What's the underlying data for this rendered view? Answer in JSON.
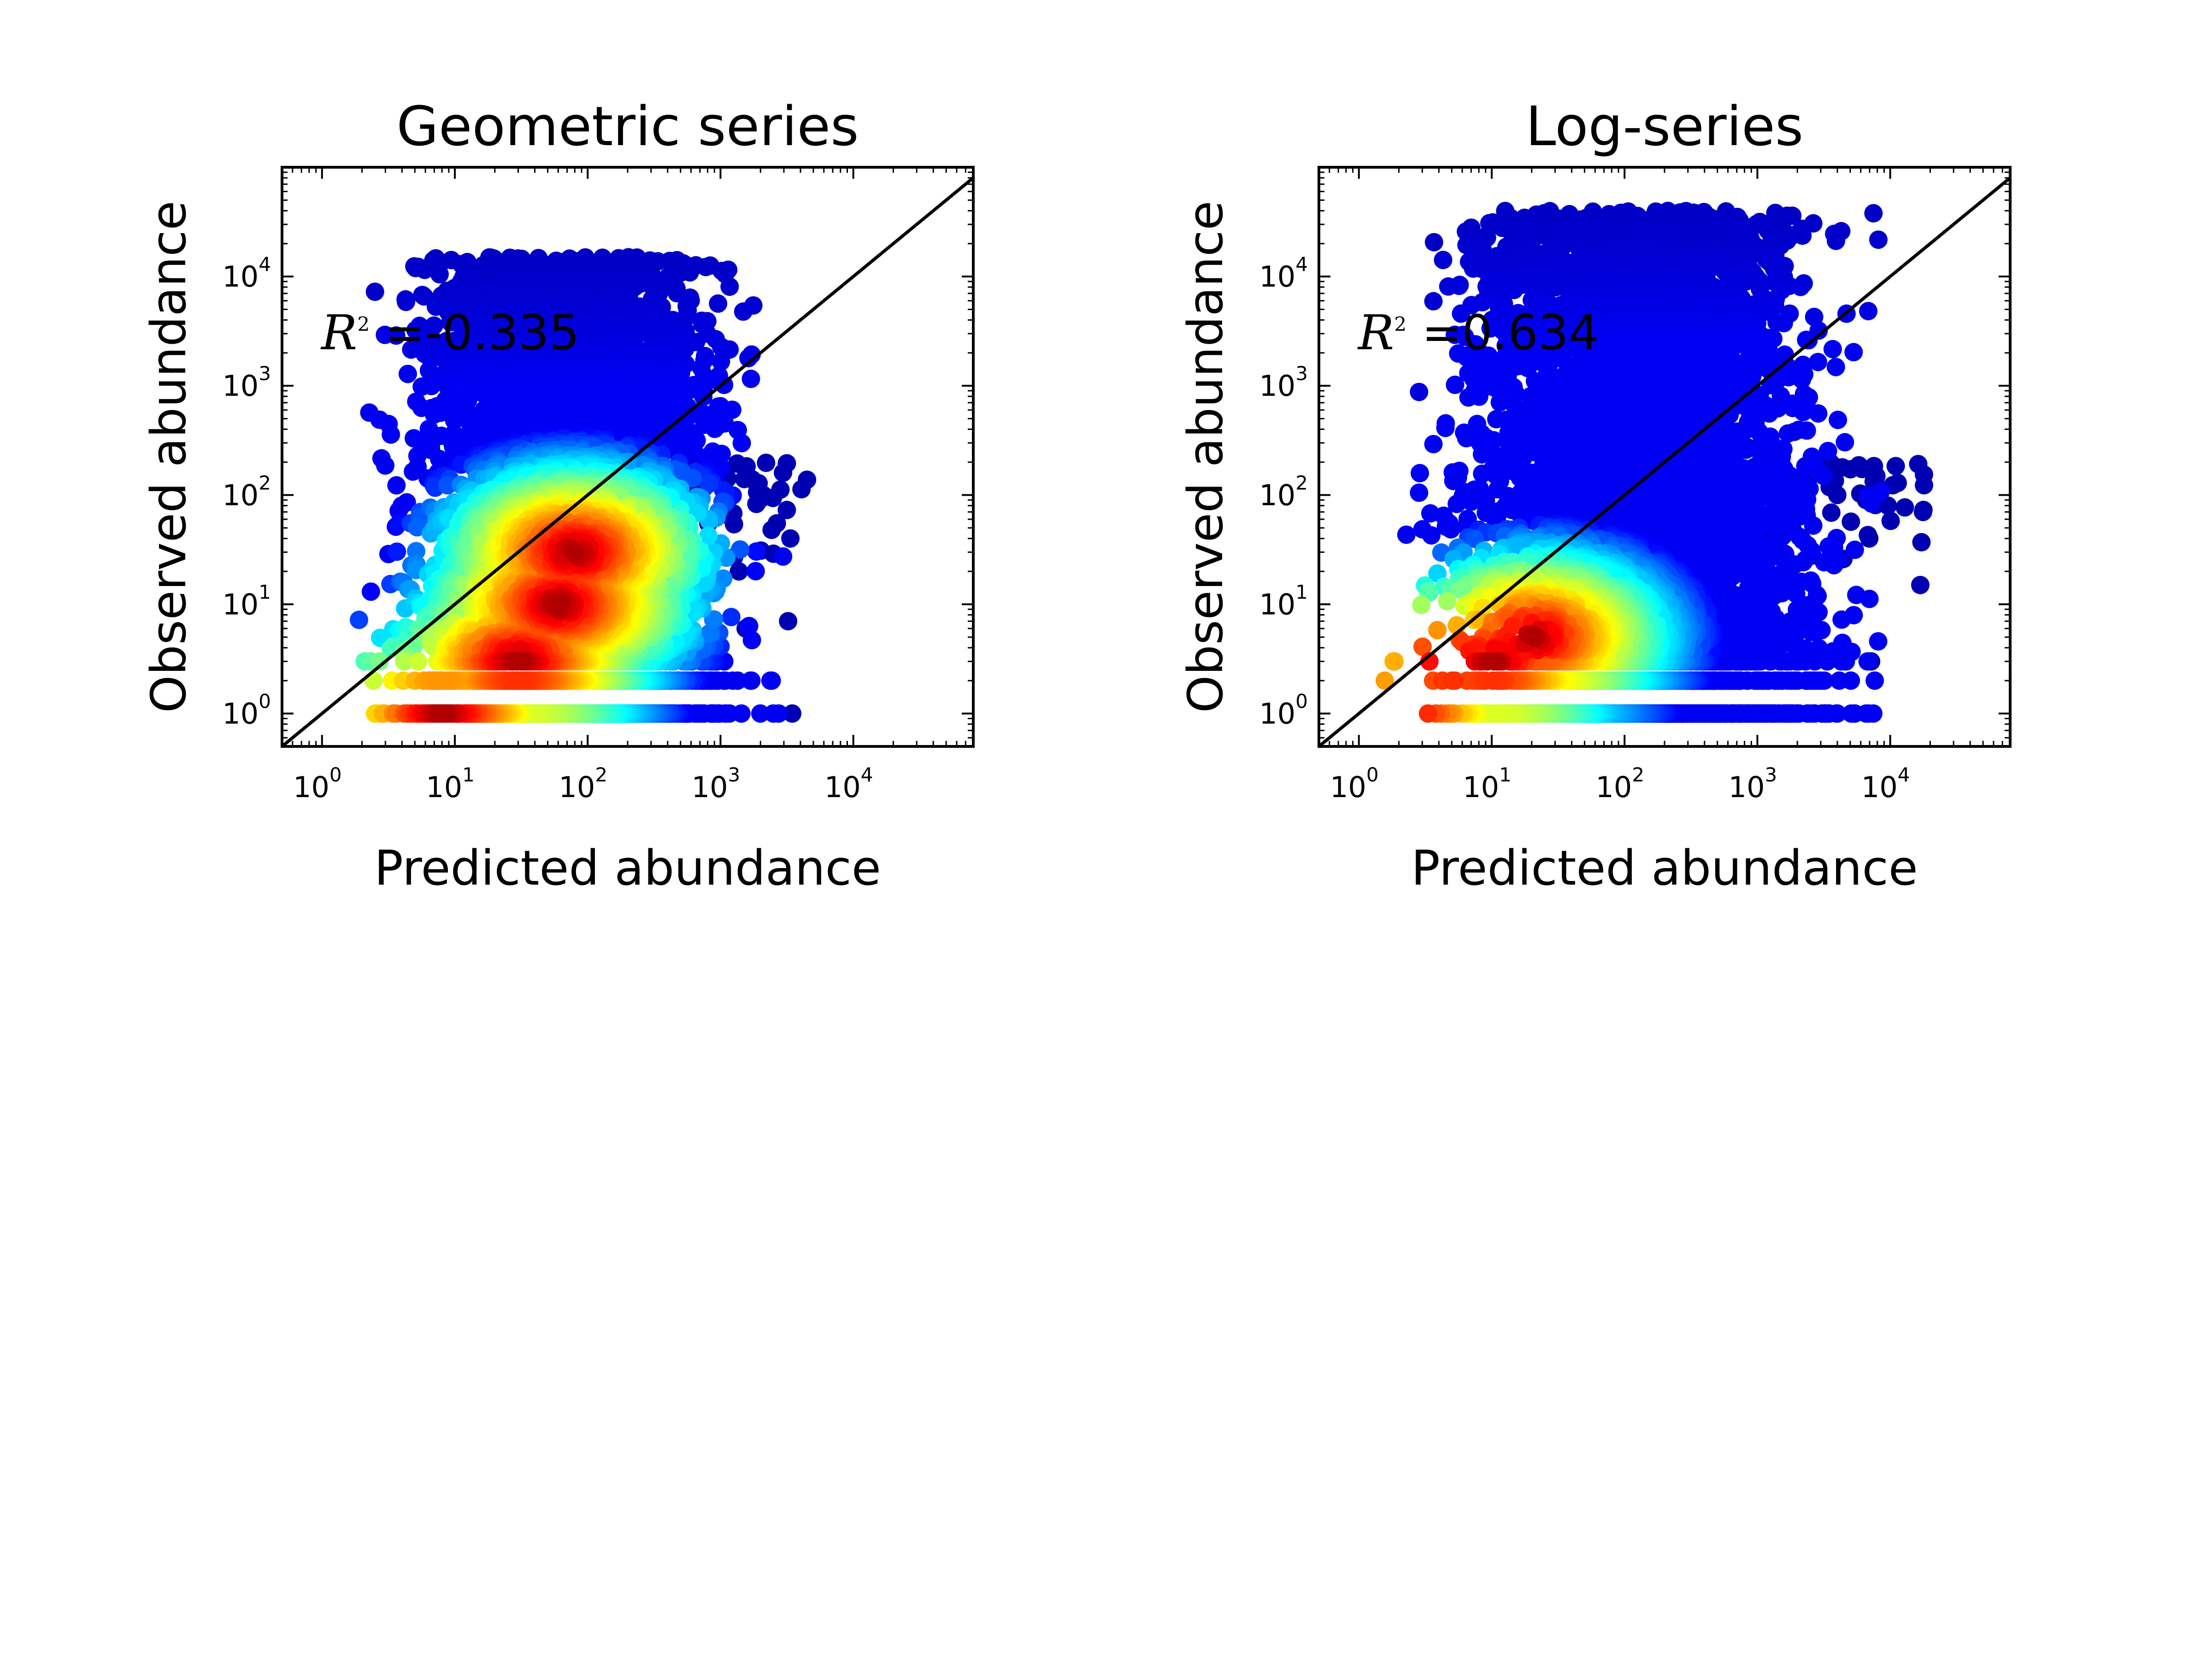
{
  "figure": {
    "background": "#ffffff",
    "colormap": "jet",
    "one_to_one_line_color": "#000000"
  },
  "chart_data": [
    {
      "type": "scatter",
      "title": "Geometric series",
      "xlabel": "Predicted abundance",
      "ylabel": "Observed abundance",
      "xscale": "log",
      "yscale": "log",
      "xlim": [
        0.5,
        80000
      ],
      "ylim": [
        0.5,
        100000
      ],
      "xticks": [
        1,
        10,
        100,
        1000,
        10000
      ],
      "yticks": [
        1,
        10,
        100,
        1000,
        10000
      ],
      "tick_base": "10",
      "tick_exponents": [
        "0",
        "1",
        "2",
        "3",
        "4"
      ],
      "annotation": {
        "r": "R",
        "sup": "2",
        "value": " =-0.335"
      },
      "reference_line": "1:1",
      "grid": false,
      "density_colored": true,
      "point_cloud": {
        "xrange": [
          1,
          4800
        ],
        "yrange": [
          1,
          48000
        ],
        "upper_edge": [
          [
            2,
            3
          ],
          [
            3,
            8
          ],
          [
            5,
            15
          ],
          [
            10,
            60
          ],
          [
            25,
            250
          ],
          [
            50,
            1200
          ],
          [
            100,
            4000
          ],
          [
            200,
            6000
          ],
          [
            500,
            12000
          ],
          [
            1000,
            20000
          ],
          [
            2000,
            25000
          ],
          [
            3000,
            15000
          ]
        ],
        "lower_edge": [
          [
            1,
            1
          ],
          [
            10,
            1
          ],
          [
            100,
            1
          ],
          [
            1000,
            1
          ],
          [
            2800,
            1
          ]
        ],
        "densest_region": [
          [
            8,
            1
          ],
          [
            30,
            3
          ],
          [
            60,
            10
          ],
          [
            80,
            30
          ]
        ]
      }
    },
    {
      "type": "scatter",
      "title": "Log-series",
      "xlabel": "Predicted abundance",
      "ylabel": "Observed abundance",
      "xscale": "log",
      "yscale": "log",
      "xlim": [
        0.5,
        80000
      ],
      "ylim": [
        0.5,
        100000
      ],
      "xticks": [
        1,
        10,
        100,
        1000,
        10000
      ],
      "yticks": [
        1,
        10,
        100,
        1000,
        10000
      ],
      "tick_base": "10",
      "tick_exponents": [
        "0",
        "1",
        "2",
        "3",
        "4"
      ],
      "annotation": {
        "r": "R",
        "sup": "2",
        "value": " =0.634"
      },
      "reference_line": "1:1",
      "grid": false,
      "density_colored": true,
      "point_cloud": {
        "xrange": [
          1,
          18000
        ],
        "yrange": [
          1,
          48000
        ],
        "upper_edge": [
          [
            1,
            30
          ],
          [
            2,
            30
          ],
          [
            5,
            40
          ],
          [
            10,
            50
          ],
          [
            30,
            60
          ],
          [
            80,
            90
          ],
          [
            150,
            300
          ],
          [
            300,
            1500
          ],
          [
            700,
            4000
          ],
          [
            1500,
            8000
          ],
          [
            3000,
            15000
          ],
          [
            8000,
            30000
          ],
          [
            15000,
            40000
          ]
        ],
        "lower_edge": [
          [
            1,
            1
          ],
          [
            10,
            1
          ],
          [
            200,
            1
          ],
          [
            1000,
            1
          ]
        ],
        "densest_region": [
          [
            1,
            1
          ],
          [
            2,
            1
          ],
          [
            5,
            3
          ],
          [
            10,
            3
          ],
          [
            20,
            5
          ]
        ]
      }
    }
  ]
}
